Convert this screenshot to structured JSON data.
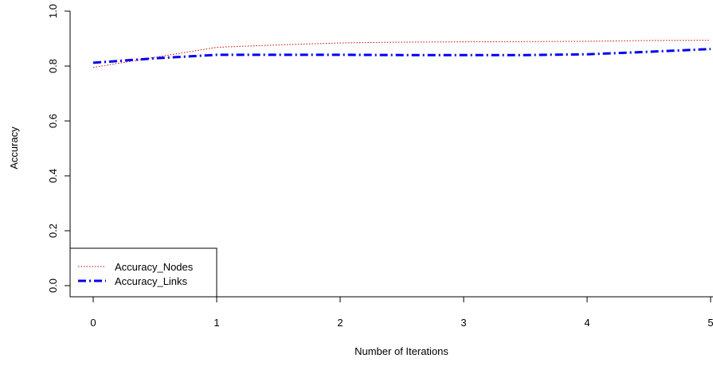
{
  "chart_data": {
    "type": "line",
    "title": "",
    "xlabel": "Number of Iterations",
    "ylabel": "Accuracy",
    "xlim": [
      0,
      5
    ],
    "ylim": [
      0.0,
      1.0
    ],
    "x_ticks": [
      "0",
      "1",
      "2",
      "3",
      "4",
      "5"
    ],
    "y_ticks": [
      "0.0",
      "0.2",
      "0.4",
      "0.6",
      "0.8",
      "1.0"
    ],
    "grid": false,
    "legend_position": "bottom-left",
    "series": [
      {
        "name": "Accuracy_Nodes",
        "color": "#cc0000",
        "line_style": "dotted",
        "x": [
          0,
          0.5,
          1,
          1.5,
          2,
          2.5,
          3,
          3.5,
          4,
          4.5,
          5
        ],
        "y": [
          0.795,
          0.832,
          0.868,
          0.877,
          0.884,
          0.887,
          0.888,
          0.889,
          0.89,
          0.893,
          0.894
        ]
      },
      {
        "name": "Accuracy_Links",
        "color": "#0000ee",
        "line_style": "dashdot",
        "x": [
          0,
          0.5,
          1,
          1.5,
          2,
          2.5,
          3,
          3.5,
          4,
          4.5,
          5
        ],
        "y": [
          0.812,
          0.828,
          0.841,
          0.841,
          0.841,
          0.84,
          0.84,
          0.84,
          0.843,
          0.852,
          0.862
        ]
      }
    ]
  }
}
